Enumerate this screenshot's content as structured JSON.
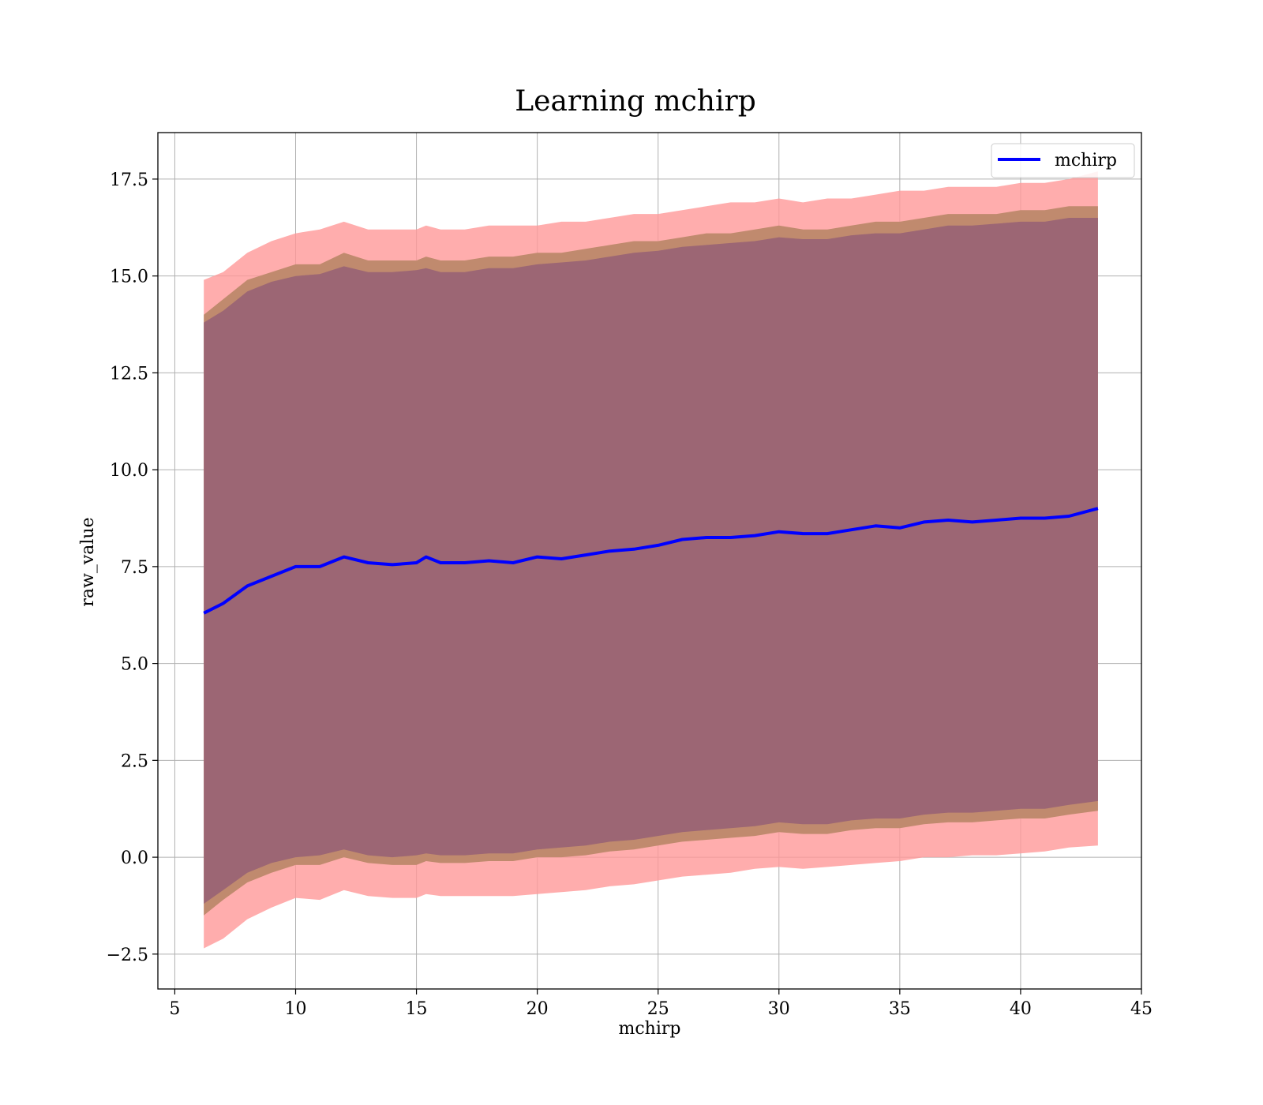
{
  "chart_data": {
    "type": "line",
    "title": "Learning mchirp",
    "xlabel": "mchirp",
    "ylabel": "raw_value",
    "xlim": [
      4.3,
      45
    ],
    "ylim": [
      -3.4,
      18.7
    ],
    "xticks": [
      5,
      10,
      15,
      20,
      25,
      30,
      35,
      40,
      45
    ],
    "yticks": [
      -2.5,
      0.0,
      2.5,
      5.0,
      7.5,
      10.0,
      12.5,
      15.0,
      17.5
    ],
    "xtick_labels": [
      "5",
      "10",
      "15",
      "20",
      "25",
      "30",
      "35",
      "40",
      "45"
    ],
    "ytick_labels": [
      "−2.5",
      "0.0",
      "2.5",
      "5.0",
      "7.5",
      "10.0",
      "12.5",
      "15.0",
      "17.5"
    ],
    "grid": true,
    "legend": {
      "position": "top-right",
      "entries": [
        "mchirp"
      ]
    },
    "colors": {
      "line": "#0000ff",
      "band_outer": "#ff9999",
      "band_middle": "#c08a6e",
      "band_inner": "#9c6674",
      "grid": "#b0b0b0"
    },
    "x": [
      6.2,
      7.0,
      8.0,
      9.0,
      10.0,
      11.0,
      12.0,
      13.0,
      14.0,
      15.0,
      15.4,
      16.0,
      17.0,
      18.0,
      19.0,
      20.0,
      21.0,
      22.0,
      23.0,
      24.0,
      25.0,
      26.0,
      27.0,
      28.0,
      29.0,
      30.0,
      31.0,
      32.0,
      33.0,
      34.0,
      35.0,
      36.0,
      37.0,
      38.0,
      39.0,
      40.0,
      41.0,
      42.0,
      43.2
    ],
    "series": [
      {
        "name": "mchirp",
        "type": "line",
        "values": [
          6.3,
          6.55,
          7.0,
          7.25,
          7.5,
          7.5,
          7.75,
          7.6,
          7.55,
          7.6,
          7.75,
          7.6,
          7.6,
          7.65,
          7.6,
          7.75,
          7.7,
          7.8,
          7.9,
          7.95,
          8.05,
          8.2,
          8.25,
          8.25,
          8.3,
          8.4,
          8.35,
          8.35,
          8.45,
          8.55,
          8.5,
          8.65,
          8.7,
          8.65,
          8.7,
          8.75,
          8.75,
          8.8,
          9.0
        ]
      }
    ],
    "bands": [
      {
        "level": "outer",
        "upper": [
          14.9,
          15.1,
          15.6,
          15.9,
          16.1,
          16.2,
          16.4,
          16.2,
          16.2,
          16.2,
          16.3,
          16.2,
          16.2,
          16.3,
          16.3,
          16.3,
          16.4,
          16.4,
          16.5,
          16.6,
          16.6,
          16.7,
          16.8,
          16.9,
          16.9,
          17.0,
          16.9,
          17.0,
          17.0,
          17.1,
          17.2,
          17.2,
          17.3,
          17.3,
          17.3,
          17.4,
          17.4,
          17.5,
          17.7
        ],
        "lower": [
          -2.35,
          -2.1,
          -1.6,
          -1.3,
          -1.05,
          -1.1,
          -0.85,
          -1.0,
          -1.05,
          -1.05,
          -0.95,
          -1.0,
          -1.0,
          -1.0,
          -1.0,
          -0.95,
          -0.9,
          -0.85,
          -0.75,
          -0.7,
          -0.6,
          -0.5,
          -0.45,
          -0.4,
          -0.3,
          -0.25,
          -0.3,
          -0.25,
          -0.2,
          -0.15,
          -0.1,
          0.0,
          0.0,
          0.05,
          0.05,
          0.1,
          0.15,
          0.25,
          0.3
        ]
      },
      {
        "level": "middle",
        "upper": [
          14.0,
          14.4,
          14.9,
          15.1,
          15.3,
          15.3,
          15.6,
          15.4,
          15.4,
          15.4,
          15.5,
          15.4,
          15.4,
          15.5,
          15.5,
          15.6,
          15.6,
          15.7,
          15.8,
          15.9,
          15.9,
          16.0,
          16.1,
          16.1,
          16.2,
          16.3,
          16.2,
          16.2,
          16.3,
          16.4,
          16.4,
          16.5,
          16.6,
          16.6,
          16.6,
          16.7,
          16.7,
          16.8,
          16.8
        ],
        "lower": [
          -1.5,
          -1.1,
          -0.65,
          -0.4,
          -0.2,
          -0.2,
          0.0,
          -0.15,
          -0.2,
          -0.2,
          -0.1,
          -0.15,
          -0.15,
          -0.1,
          -0.1,
          0.0,
          0.0,
          0.05,
          0.15,
          0.2,
          0.3,
          0.4,
          0.45,
          0.5,
          0.55,
          0.65,
          0.6,
          0.6,
          0.7,
          0.75,
          0.75,
          0.85,
          0.9,
          0.9,
          0.95,
          1.0,
          1.0,
          1.1,
          1.2
        ]
      },
      {
        "level": "inner",
        "upper": [
          13.8,
          14.1,
          14.6,
          14.85,
          15.0,
          15.05,
          15.25,
          15.1,
          15.1,
          15.15,
          15.2,
          15.1,
          15.1,
          15.2,
          15.2,
          15.3,
          15.35,
          15.4,
          15.5,
          15.6,
          15.65,
          15.75,
          15.8,
          15.85,
          15.9,
          16.0,
          15.95,
          15.95,
          16.05,
          16.1,
          16.1,
          16.2,
          16.3,
          16.3,
          16.35,
          16.4,
          16.4,
          16.5,
          16.5
        ],
        "lower": [
          -1.2,
          -0.85,
          -0.4,
          -0.15,
          0.0,
          0.05,
          0.2,
          0.05,
          0.0,
          0.05,
          0.1,
          0.05,
          0.05,
          0.1,
          0.1,
          0.2,
          0.25,
          0.3,
          0.4,
          0.45,
          0.55,
          0.65,
          0.7,
          0.75,
          0.8,
          0.9,
          0.85,
          0.85,
          0.95,
          1.0,
          1.0,
          1.1,
          1.15,
          1.15,
          1.2,
          1.25,
          1.25,
          1.35,
          1.45
        ]
      }
    ]
  }
}
